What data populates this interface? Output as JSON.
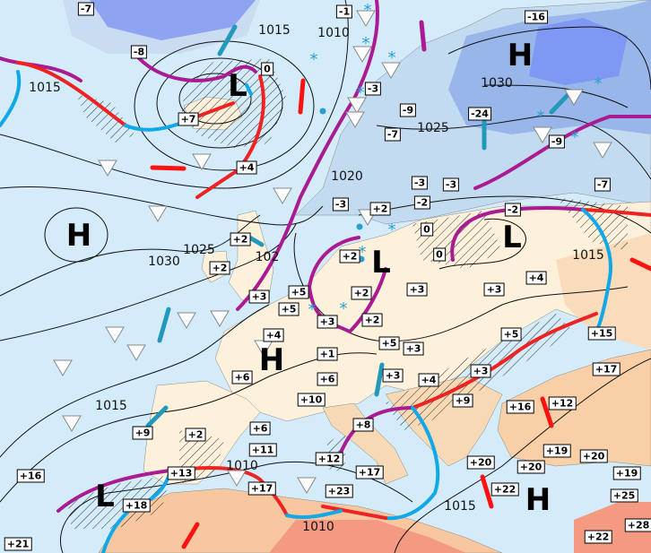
{
  "map": {
    "colors": {
      "sea": "#d4ecf9",
      "land": "#fdf1dc",
      "cold_land": "#b9d4ee",
      "very_cold": "#7f98f3",
      "warm": "#f8cfa6",
      "hot": "#f39a80",
      "warm_front": "#ee2222",
      "cold_front": "#10a8e8",
      "occluded_front": "#aa1a92",
      "isobar": "#111111",
      "cold_air_arrow": "#2299bb",
      "warm_air_arrow": "#ff1111"
    },
    "pressure_centers": [
      "H",
      "L",
      "H",
      "L",
      "L",
      "H",
      "L",
      "H"
    ],
    "isobar_labels": [
      "1015",
      "1010",
      "1015",
      "1030",
      "1025",
      "1020",
      "1030",
      "1025",
      "102",
      "1015",
      "1015",
      "1010",
      "1010",
      "1015"
    ],
    "temperature_labels": [
      "-7",
      "-8",
      "0",
      "+7",
      "+4",
      "+2",
      "+2",
      "-1",
      "-16",
      "-3",
      "-9",
      "-7",
      "-24",
      "-9",
      "-3",
      "-2",
      "-3",
      "-7",
      "-3",
      "+2",
      "0",
      "0",
      "-2",
      "+2",
      "+2",
      "+3",
      "+5",
      "+5",
      "+3",
      "+2",
      "+3",
      "+3",
      "+4",
      "+4",
      "+5",
      "+3",
      "+1",
      "+6",
      "+3",
      "+4",
      "+5",
      "+3",
      "+9",
      "+15",
      "+17",
      "+6",
      "+10",
      "+8",
      "+16",
      "+12",
      "+9",
      "+2",
      "+6",
      "+11",
      "+12",
      "+17",
      "+20",
      "+20",
      "+19",
      "+20",
      "+19",
      "+13",
      "+17",
      "+23",
      "+22",
      "+25",
      "+18",
      "+16",
      "+21",
      "+22",
      "+28"
    ],
    "weather_symbols": [
      "shower-icon",
      "snow-icon",
      "rain-drop-icon"
    ]
  }
}
